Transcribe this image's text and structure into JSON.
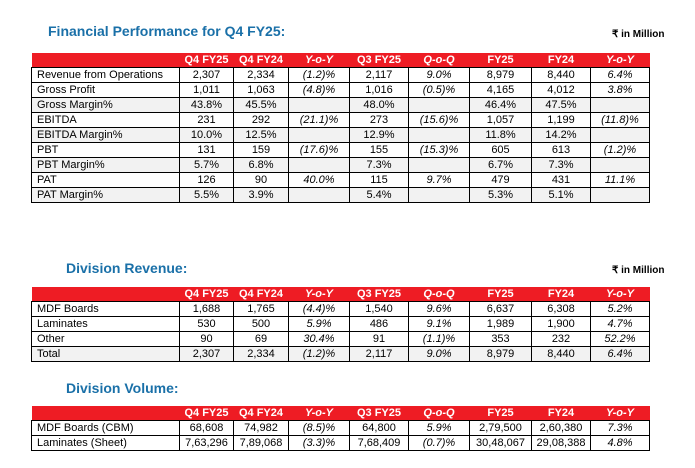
{
  "fin": {
    "title": "Financial Performance for Q4 FY25:",
    "unit": "₹ in Million",
    "headers": [
      "",
      "Q4 FY25",
      "Q4 FY24",
      "Y-o-Y",
      "Q3 FY25",
      "Q-o-Q",
      "FY25",
      "FY24",
      "Y-o-Y"
    ],
    "rows": [
      [
        "Revenue from Operations",
        "2,307",
        "2,334",
        "(1.2)%",
        "2,117",
        "9.0%",
        "8,979",
        "8,440",
        "6.4%"
      ],
      [
        "Gross Profit",
        "1,011",
        "1,063",
        "(4.8)%",
        "1,016",
        "(0.5)%",
        "4,165",
        "4,012",
        "3.8%"
      ],
      [
        "Gross Margin%",
        "43.8%",
        "45.5%",
        "",
        "48.0%",
        "",
        "46.4%",
        "47.5%",
        ""
      ],
      [
        "EBITDA",
        "231",
        "292",
        "(21.1)%",
        "273",
        "(15.6)%",
        "1,057",
        "1,199",
        "(11.8)%"
      ],
      [
        "EBITDA Margin%",
        "10.0%",
        "12.5%",
        "",
        "12.9%",
        "",
        "11.8%",
        "14.2%",
        ""
      ],
      [
        "PBT",
        "131",
        "159",
        "(17.6)%",
        "155",
        "(15.3)%",
        "605",
        "613",
        "(1.2)%"
      ],
      [
        "PBT Margin%",
        "5.7%",
        "6.8%",
        "",
        "7.3%",
        "",
        "6.7%",
        "7.3%",
        ""
      ],
      [
        "PAT",
        "126",
        "90",
        "40.0%",
        "115",
        "9.7%",
        "479",
        "431",
        "11.1%"
      ],
      [
        "PAT Margin%",
        "5.5%",
        "3.9%",
        "",
        "5.4%",
        "",
        "5.3%",
        "5.1%",
        ""
      ]
    ]
  },
  "rev": {
    "title": "Division Revenue:",
    "unit": "₹ in Million",
    "headers": [
      "",
      "Q4 FY25",
      "Q4 FY24",
      "Y-o-Y",
      "Q3 FY25",
      "Q-o-Q",
      "FY25",
      "FY24",
      "Y-o-Y"
    ],
    "rows": [
      [
        "MDF Boards",
        "1,688",
        "1,765",
        "(4.4)%",
        "1,540",
        "9.6%",
        "6,637",
        "6,308",
        "5.2%"
      ],
      [
        "Laminates",
        "530",
        "500",
        "5.9%",
        "486",
        "9.1%",
        "1,989",
        "1,900",
        "4.7%"
      ],
      [
        "Other",
        "90",
        "69",
        "30.4%",
        "91",
        "(1.1)%",
        "353",
        "232",
        "52.2%"
      ],
      [
        "Total",
        "2,307",
        "2,334",
        "(1.2)%",
        "2,117",
        "9.0%",
        "8,979",
        "8,440",
        "6.4%"
      ]
    ]
  },
  "vol": {
    "title": "Division Volume:",
    "headers": [
      "",
      "Q4 FY25",
      "Q4 FY24",
      "Y-o-Y",
      "Q3 FY25",
      "Q-o-Q",
      "FY25",
      "FY24",
      "Y-o-Y"
    ],
    "rows": [
      [
        "MDF Boards (CBM)",
        "68,608",
        "74,982",
        "(8.5)%",
        "64,800",
        "5.9%",
        "2,79,500",
        "2,60,380",
        "7.3%"
      ],
      [
        "Laminates (Sheet)",
        "7,63,296",
        "7,89,068",
        "(3.3)%",
        "7,68,409",
        "(0.7)%",
        "30,48,067",
        "29,08,388",
        "4.8%"
      ]
    ]
  }
}
